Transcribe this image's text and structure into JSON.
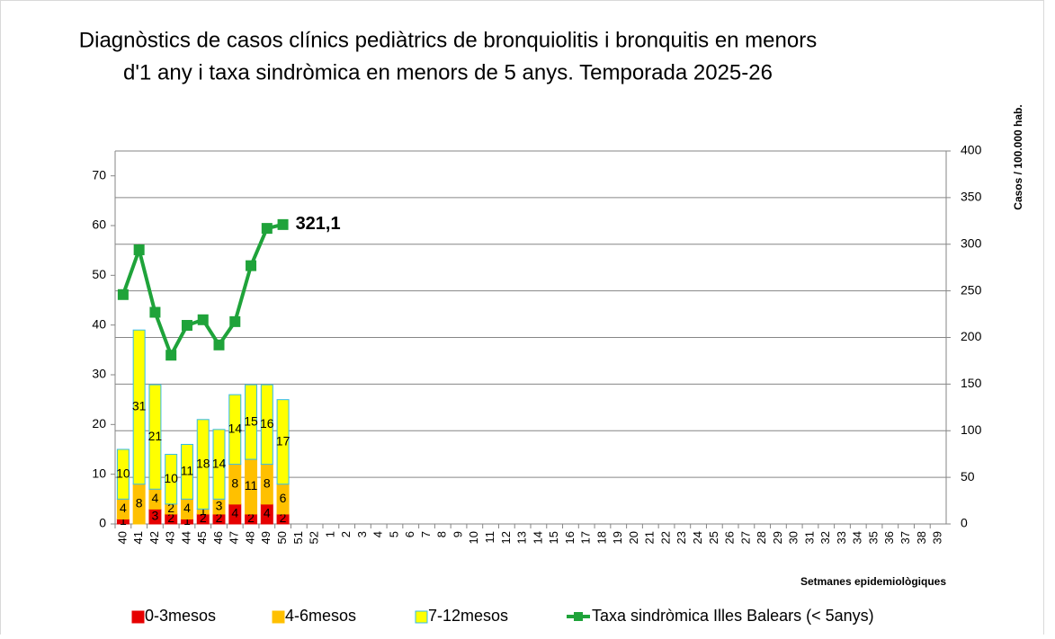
{
  "chart_data": {
    "type": "bar",
    "title": [
      "Diagnòstics de casos clínics pediàtrics de bronquiolitis i bronquitis en menors",
      "d'1 any i taxa sindròmica en menors de 5 anys. Temporada 2025-26"
    ],
    "x_label": "Setmanes epidemiològiques",
    "y2_label": "Casos / 100.000 hab.",
    "categories": [
      "40",
      "41",
      "42",
      "43",
      "44",
      "45",
      "46",
      "47",
      "48",
      "49",
      "50",
      "51",
      "52",
      "1",
      "2",
      "3",
      "4",
      "5",
      "6",
      "7",
      "8",
      "9",
      "10",
      "11",
      "12",
      "13",
      "14",
      "15",
      "16",
      "17",
      "18",
      "19",
      "20",
      "21",
      "22",
      "23",
      "24",
      "25",
      "26",
      "27",
      "28",
      "29",
      "30",
      "31",
      "32",
      "33",
      "34",
      "35",
      "36",
      "37",
      "38",
      "39"
    ],
    "stacked": true,
    "series": [
      {
        "name": "0-3mesos",
        "type": "bar",
        "color": "#e60000",
        "edge": "#e60000",
        "values": [
          1,
          null,
          3,
          2,
          1,
          2,
          2,
          4,
          2,
          4,
          2,
          null,
          null,
          null,
          null,
          null,
          null,
          null,
          null,
          null,
          null,
          null,
          null,
          null,
          null,
          null,
          null,
          null,
          null,
          null,
          null,
          null,
          null,
          null,
          null,
          null,
          null,
          null,
          null,
          null,
          null,
          null,
          null,
          null,
          null,
          null,
          null,
          null,
          null,
          null,
          null,
          null
        ]
      },
      {
        "name": "4-6mesos",
        "type": "bar",
        "color": "#ffc000",
        "edge": "#ffc000",
        "values": [
          4,
          8,
          4,
          2,
          4,
          1,
          3,
          8,
          11,
          8,
          6,
          null,
          null,
          null,
          null,
          null,
          null,
          null,
          null,
          null,
          null,
          null,
          null,
          null,
          null,
          null,
          null,
          null,
          null,
          null,
          null,
          null,
          null,
          null,
          null,
          null,
          null,
          null,
          null,
          null,
          null,
          null,
          null,
          null,
          null,
          null,
          null,
          null,
          null,
          null,
          null,
          null
        ]
      },
      {
        "name": "7-12mesos",
        "type": "bar",
        "color": "#ffff00",
        "edge": "#33bbee",
        "values": [
          10,
          31,
          21,
          10,
          11,
          18,
          14,
          14,
          15,
          16,
          17,
          null,
          null,
          null,
          null,
          null,
          null,
          null,
          null,
          null,
          null,
          null,
          null,
          null,
          null,
          null,
          null,
          null,
          null,
          null,
          null,
          null,
          null,
          null,
          null,
          null,
          null,
          null,
          null,
          null,
          null,
          null,
          null,
          null,
          null,
          null,
          null,
          null,
          null,
          null,
          null,
          null
        ]
      },
      {
        "name": "Taxa sindròmica Illes Balears (< 5anys)",
        "type": "line",
        "axis": "y2",
        "color": "#1fa33a",
        "values": [
          246,
          294,
          227,
          181,
          213,
          219,
          192,
          217,
          277,
          317,
          321.1,
          null,
          null,
          null,
          null,
          null,
          null,
          null,
          null,
          null,
          null,
          null,
          null,
          null,
          null,
          null,
          null,
          null,
          null,
          null,
          null,
          null,
          null,
          null,
          null,
          null,
          null,
          null,
          null,
          null,
          null,
          null,
          null,
          null,
          null,
          null,
          null,
          null,
          null,
          null,
          null,
          null
        ],
        "value_labels": [
          null,
          null,
          null,
          null,
          null,
          null,
          null,
          null,
          null,
          null,
          "321,1",
          null,
          null,
          null,
          null,
          null,
          null,
          null,
          null,
          null,
          null,
          null,
          null,
          null,
          null,
          null,
          null,
          null,
          null,
          null,
          null,
          null,
          null,
          null,
          null,
          null,
          null,
          null,
          null,
          null,
          null,
          null,
          null,
          null,
          null,
          null,
          null,
          null,
          null,
          null,
          null,
          null
        ]
      }
    ],
    "ylim": [
      0,
      75
    ],
    "yticks": [
      0,
      10,
      20,
      30,
      40,
      50,
      60,
      70
    ],
    "y2lim": [
      0,
      400
    ],
    "y2ticks": [
      0,
      50,
      100,
      150,
      200,
      250,
      300,
      350,
      400
    ],
    "grid": "y2",
    "legend": "bottom"
  }
}
